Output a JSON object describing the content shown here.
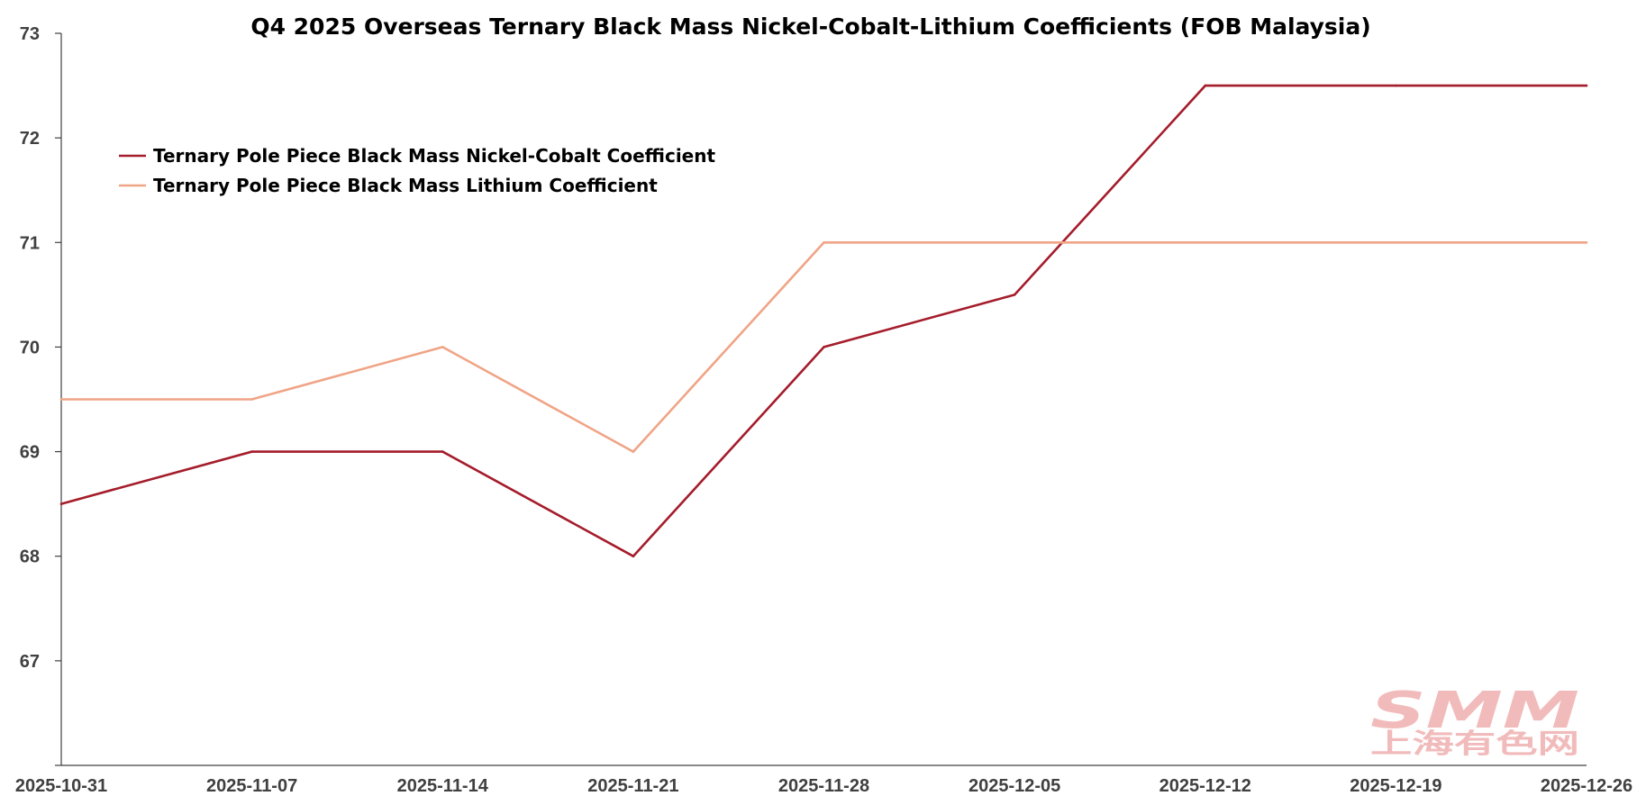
{
  "chart_data": {
    "type": "line",
    "title": "Q4 2025 Overseas Ternary Black Mass Nickel-Cobalt-Lithium Coefficients (FOB Malaysia)",
    "xlabel": "",
    "ylabel": "",
    "x": [
      "2025-10-31",
      "2025-11-07",
      "2025-11-14",
      "2025-11-21",
      "2025-11-28",
      "2025-12-05",
      "2025-12-12",
      "2025-12-19",
      "2025-12-26"
    ],
    "ylim": [
      66,
      73
    ],
    "yticks": [
      67,
      68,
      69,
      70,
      71,
      72,
      73
    ],
    "grid": false,
    "legend_position": "top-left",
    "series": [
      {
        "name": "Ternary Pole Piece Black Mass Nickel-Cobalt Coefficient",
        "color": "#A51C2B",
        "values": [
          68.5,
          69,
          69,
          68,
          70,
          70.5,
          72.5,
          72.5,
          72.5
        ]
      },
      {
        "name": "Ternary Pole Piece Black Mass Lithium Coefficient",
        "color": "#F0A486",
        "values": [
          69.5,
          69.5,
          70,
          69,
          71,
          71,
          71,
          71,
          71
        ]
      }
    ]
  },
  "watermark": {
    "brand": "SMM",
    "subtitle": "上海有色网",
    "color": "#F2B8B8"
  }
}
